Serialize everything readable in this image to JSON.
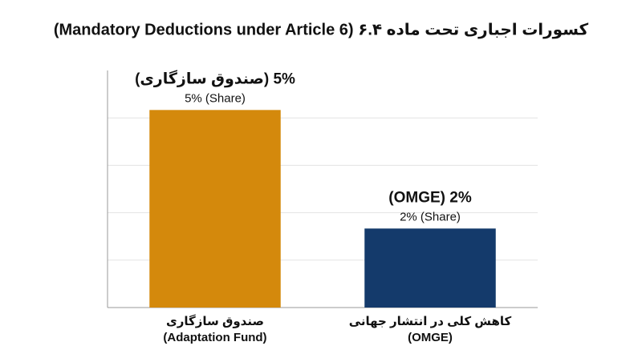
{
  "chart_data": {
    "type": "bar",
    "title": "کسورات اجباری تحت ماده ۶.۴ (Mandatory Deductions under Article 6)",
    "categories": [
      "صندوق سازگاری",
      "کاهش کلی در انتشار جهانی"
    ],
    "category_subtitles": [
      "(Adaptation Fund)",
      "(OMGE)"
    ],
    "values": [
      5,
      2
    ],
    "value_labels": [
      "5% (صندوق سازگاری)",
      "2% (OMGE)"
    ],
    "share_labels": [
      "5% (Share)",
      "2% (Share)"
    ],
    "colors": [
      "#d4890c",
      "#143a6b"
    ],
    "ylim": [
      0,
      6
    ],
    "yticks": [
      1.2,
      2.4,
      3.6,
      4.8
    ],
    "grid": true
  }
}
